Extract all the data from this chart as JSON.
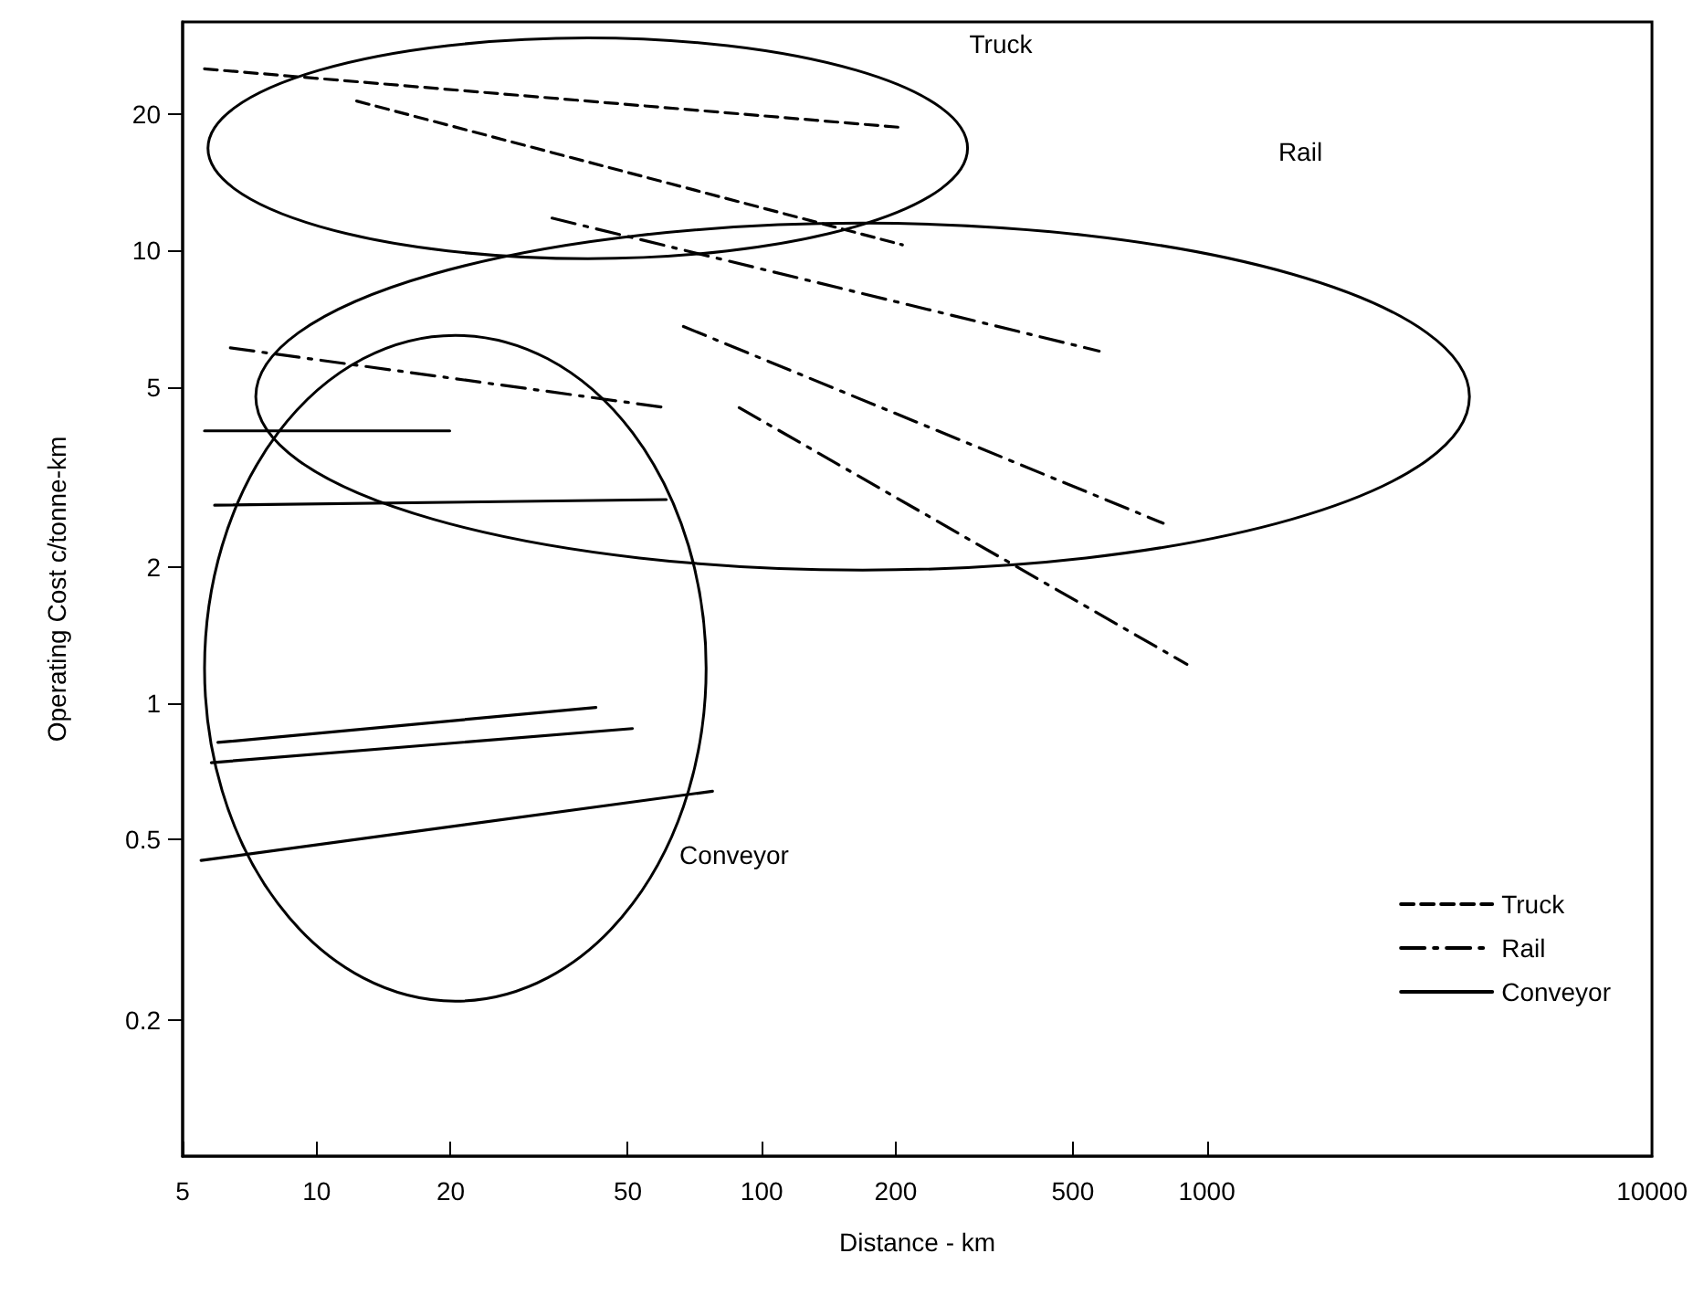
{
  "chart_data": {
    "type": "line",
    "xlabel": "Distance - km",
    "ylabel": "Operating Cost c/tonne-km",
    "log": "xy",
    "grid": false,
    "legend": "bottom right",
    "marker": "none",
    "xlim": [
      5,
      10000
    ],
    "xticks": [
      5,
      10,
      20,
      50,
      100,
      200,
      500,
      1000,
      10000
    ],
    "ylim": [
      0.1,
      32
    ],
    "yticks": [
      0.2,
      0.5,
      1,
      2,
      5,
      10,
      20
    ],
    "annotations": [
      "Truck",
      "Rail",
      "Conveyor"
    ],
    "series": [
      {
        "name": "Truck",
        "color": "#000000",
        "line_style": "dashed",
        "x": [
          5.6,
          207
        ],
        "values": [
          25.2,
          18.7
        ]
      },
      {
        "color": "#000000",
        "line_style": "dashed",
        "x": [
          12.3,
          207
        ],
        "values": [
          21.4,
          10.3
        ]
      },
      {
        "name": "Rail",
        "color": "#000000",
        "line_style": "dashdot",
        "x": [
          33.8,
          573
        ],
        "values": [
          11.8,
          6.0
        ]
      },
      {
        "color": "#000000",
        "line_style": "dashdot",
        "x": [
          6.4,
          61
        ],
        "values": [
          6.1,
          4.5
        ]
      },
      {
        "color": "#000000",
        "line_style": "dashdot",
        "x": [
          66.7,
          798
        ],
        "values": [
          6.8,
          2.5
        ]
      },
      {
        "color": "#000000",
        "line_style": "dashdot",
        "x": [
          89,
          902
        ],
        "values": [
          4.5,
          1.22
        ]
      },
      {
        "name": "Conveyor",
        "color": "#000000",
        "line_style": "solid",
        "x": [
          5.6,
          19.9
        ],
        "values": [
          4.0,
          4.0
        ]
      },
      {
        "color": "#000000",
        "line_style": "solid",
        "x": [
          5.9,
          61
        ],
        "values": [
          2.74,
          2.82
        ]
      },
      {
        "color": "#000000",
        "line_style": "solid",
        "x": [
          6.0,
          42.4
        ],
        "values": [
          0.82,
          0.98
        ]
      },
      {
        "color": "#000000",
        "line_style": "solid",
        "x": [
          5.8,
          51.2
        ],
        "values": [
          0.74,
          0.88
        ]
      },
      {
        "color": "#000000",
        "line_style": "solid",
        "x": [
          5.5,
          77.5
        ],
        "values": [
          0.45,
          0.64
        ]
      }
    ]
  }
}
